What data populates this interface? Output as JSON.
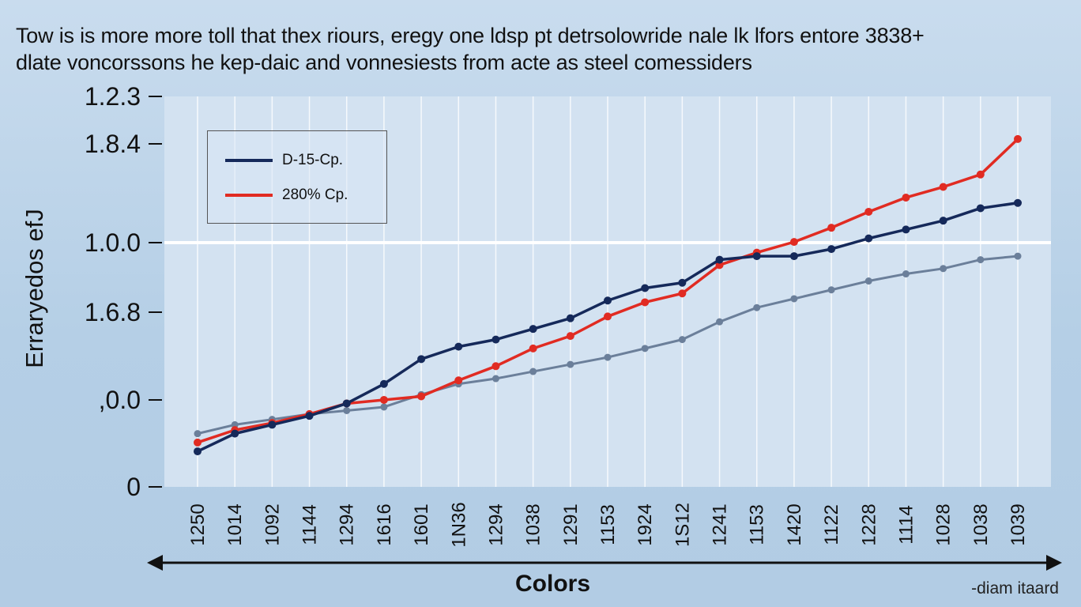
{
  "chart_data": {
    "type": "line",
    "title": "Tow is is more more toll that thex riours, eregy one ldsp pt detrsolowride nale lk lfors entore 3838+",
    "subtitle": "dlate voncorssons he kep-daic and vonnesiests from acte as steel comessiders",
    "xlabel": "Colors",
    "ylabel": "Erraryedos efJ",
    "credit": "-diam itaard",
    "y_ticks": [
      "1.2.3",
      "1.8.4",
      "1.0.0",
      "1.6.8",
      ",0.0",
      "0"
    ],
    "x_ticks": [
      "1250",
      "1014",
      "1092",
      "1144",
      "1294",
      "1616",
      "1601",
      "1N36",
      "1294",
      "1038",
      "1291",
      "1153",
      "1924",
      "1S12",
      "1241",
      "1153",
      "1420",
      "1122",
      "1228",
      "1114",
      "1028",
      "1038",
      "1039"
    ],
    "reference_line": 1.0,
    "series": [
      {
        "name": "D-15-Cp.",
        "color": "#15295a",
        "values": [
          0.2,
          0.3,
          0.35,
          0.4,
          0.47,
          0.58,
          0.72,
          0.79,
          0.83,
          0.89,
          0.95,
          1.05,
          1.12,
          1.15,
          1.28,
          1.3,
          1.3,
          1.34,
          1.4,
          1.45,
          1.5,
          1.57,
          1.6
        ]
      },
      {
        "name": "280% Cp.",
        "color": "#e12b22",
        "values": [
          0.25,
          0.32,
          0.36,
          0.41,
          0.47,
          0.49,
          0.51,
          0.6,
          0.68,
          0.78,
          0.85,
          0.96,
          1.04,
          1.09,
          1.25,
          1.32,
          1.38,
          1.46,
          1.55,
          1.63,
          1.69,
          1.76,
          1.96
        ]
      },
      {
        "name": "",
        "color": "#6b7f9a",
        "values": [
          0.3,
          0.35,
          0.38,
          0.41,
          0.43,
          0.45,
          0.52,
          0.58,
          0.61,
          0.65,
          0.69,
          0.73,
          0.78,
          0.83,
          0.93,
          1.01,
          1.06,
          1.11,
          1.16,
          1.2,
          1.23,
          1.28,
          1.3
        ]
      }
    ],
    "legend": [
      "D-15-Cp.",
      "280% Cp."
    ]
  }
}
